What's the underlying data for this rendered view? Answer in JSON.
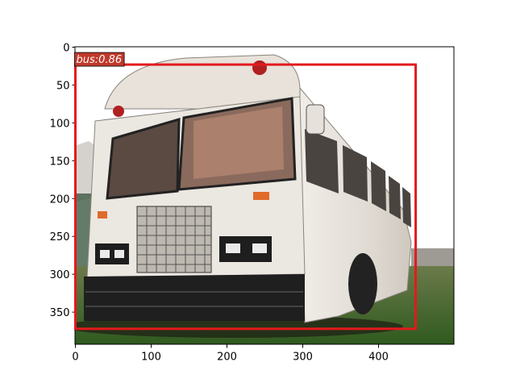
{
  "image_extent": {
    "width": 500,
    "height": 393
  },
  "axes": {
    "x_ticks": [
      0,
      100,
      200,
      300,
      400
    ],
    "y_ticks": [
      0,
      50,
      100,
      150,
      200,
      250,
      300,
      350
    ]
  },
  "detection": {
    "label": "bus:0.86",
    "box": {
      "x0": 0,
      "y0": 23,
      "x1": 449,
      "y1": 372
    },
    "box_color": "#e31a1c",
    "label_bg": "#c0392b"
  },
  "colors": {
    "sky": "#ffffff",
    "grass": "#3e6b2a",
    "bus_body": "#e9e4de"
  }
}
